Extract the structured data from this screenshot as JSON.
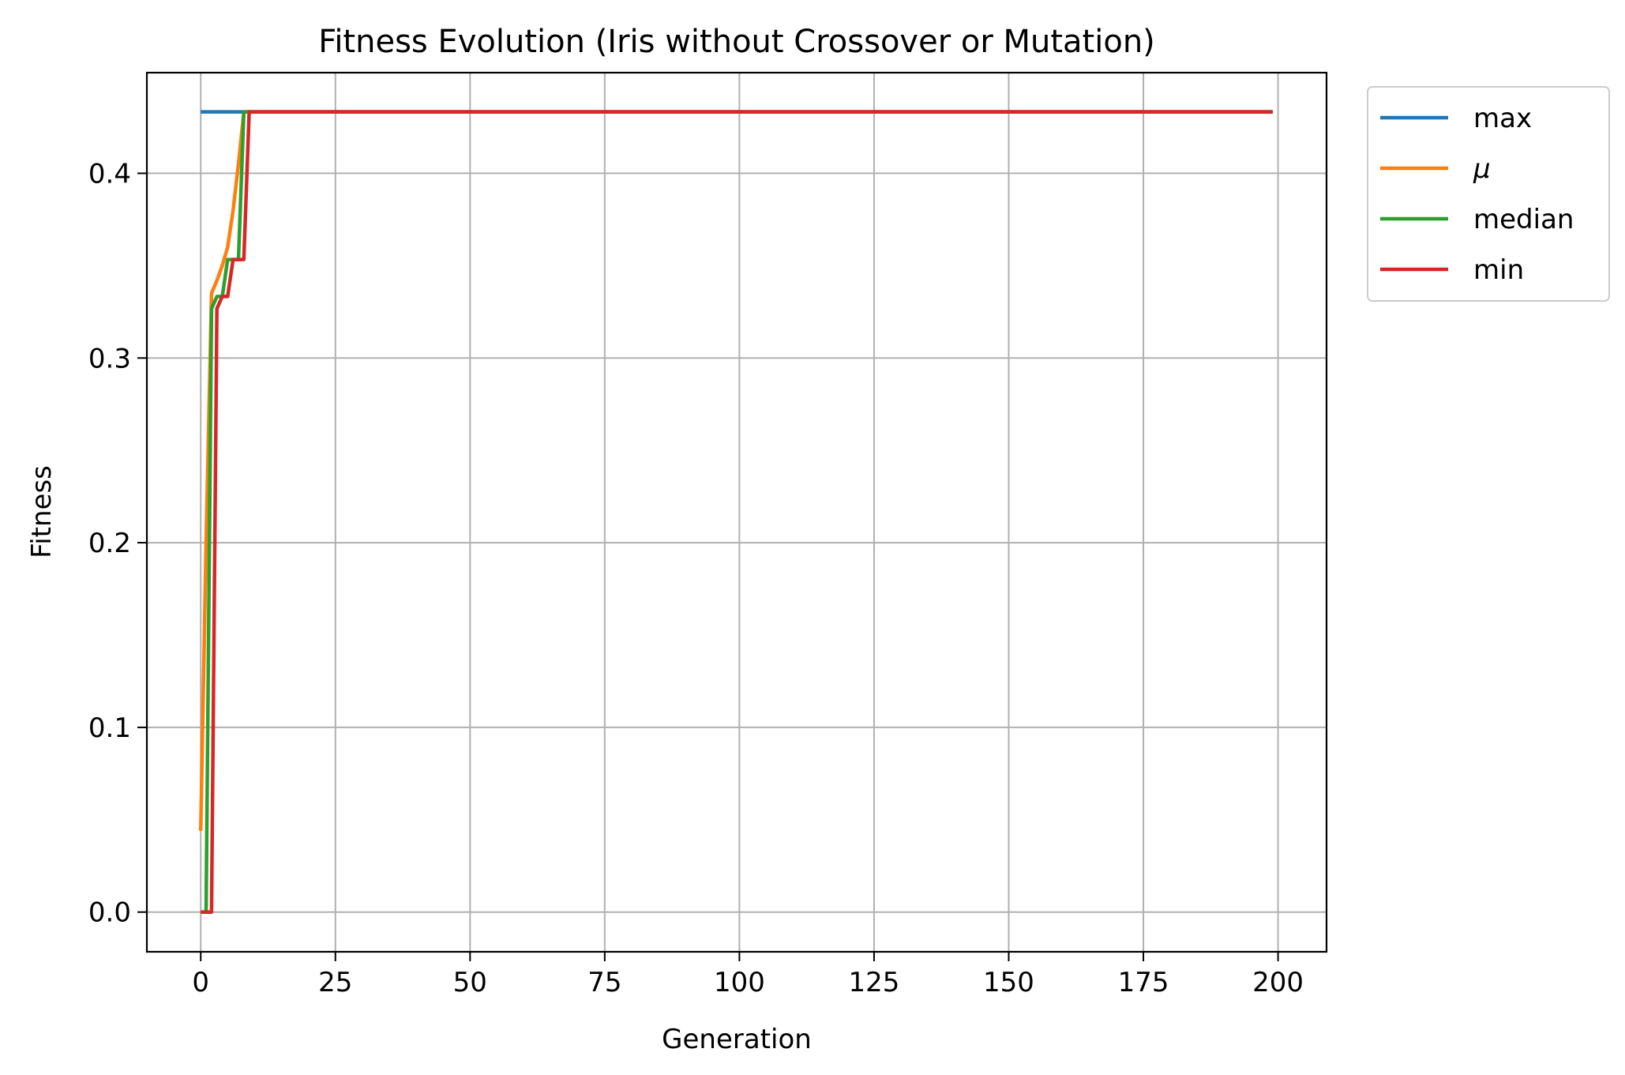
{
  "chart_data": {
    "type": "line",
    "title": "Fitness Evolution (Iris without Crossover or Mutation)",
    "xlabel": "Generation",
    "ylabel": "Fitness",
    "xlim": [
      -10,
      209
    ],
    "ylim": [
      -0.0215,
      0.4545
    ],
    "xticks": [
      0,
      25,
      50,
      75,
      100,
      125,
      150,
      175,
      200
    ],
    "yticks": [
      0.0,
      0.1,
      0.2,
      0.3,
      0.4
    ],
    "xtick_labels": [
      "0",
      "25",
      "50",
      "75",
      "100",
      "125",
      "150",
      "175",
      "200"
    ],
    "ytick_labels": [
      "0.0",
      "0.1",
      "0.2",
      "0.3",
      "0.4"
    ],
    "grid": true,
    "legend_position": "outside upper right",
    "series": [
      {
        "name": "max",
        "color": "#1f77b4",
        "x": [
          0,
          199
        ],
        "y": [
          0.4333,
          0.4333
        ]
      },
      {
        "name": "μ",
        "color": "#ff7f0e",
        "x": [
          0,
          1,
          2,
          3,
          4,
          5,
          6,
          7,
          8,
          9,
          199
        ],
        "y": [
          0.044,
          0.2,
          0.335,
          0.342,
          0.35,
          0.36,
          0.38,
          0.405,
          0.4333,
          0.4333,
          0.4333
        ]
      },
      {
        "name": "median",
        "color": "#2ca02c",
        "x": [
          0,
          1,
          2,
          3,
          4,
          5,
          6,
          7,
          8,
          199
        ],
        "y": [
          0.0,
          0.0,
          0.3267,
          0.3333,
          0.3333,
          0.3533,
          0.3533,
          0.3533,
          0.4333,
          0.4333
        ]
      },
      {
        "name": "min",
        "color": "#d62728",
        "x": [
          0,
          1,
          2,
          3,
          4,
          5,
          6,
          7,
          8,
          9,
          199
        ],
        "y": [
          0.0,
          0.0,
          0.0,
          0.3267,
          0.3333,
          0.3333,
          0.3533,
          0.3533,
          0.3533,
          0.4333,
          0.4333
        ]
      }
    ]
  }
}
